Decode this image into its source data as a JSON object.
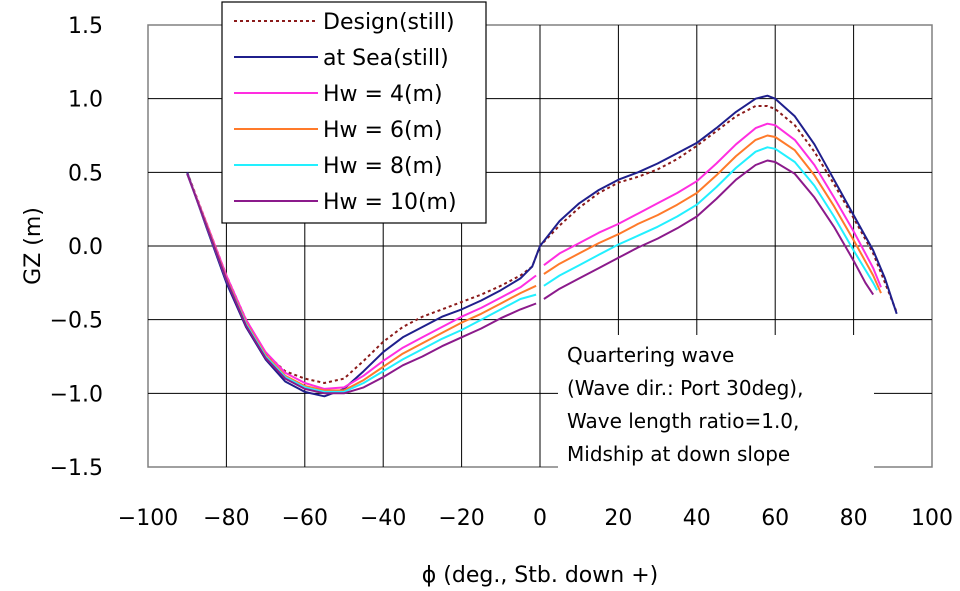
{
  "chart_data": {
    "type": "line",
    "xlabel": "ϕ (deg., Stb. down +)",
    "ylabel": "GZ (m)",
    "xlim": [
      -100,
      100
    ],
    "ylim": [
      -1.5,
      1.5
    ],
    "xticks": [
      -100,
      -80,
      -60,
      -40,
      -20,
      0,
      20,
      40,
      60,
      80,
      100
    ],
    "yticks": [
      1.5,
      1.0,
      0.5,
      0.0,
      -0.5,
      -1.0,
      -1.5
    ],
    "xtick_labels": [
      "−100",
      "−80",
      "−60",
      "−40",
      "−20",
      "0",
      "20",
      "40",
      "60",
      "80",
      "100"
    ],
    "ytick_labels": [
      "1.5",
      "1.0",
      "0.5",
      "0.0",
      "−0.5",
      "−1.0",
      "−1.5"
    ],
    "grid": true,
    "legend_position": "top-left",
    "annotation": [
      "Quartering wave",
      "(Wave dir.: Port 30deg),",
      "Wave length ratio=1.0,",
      "Midship at down slope"
    ],
    "series": [
      {
        "name": "Design(still)",
        "color": "#8b1a1a",
        "dashed": true,
        "segments": [
          [
            [
              -90,
              0.5
            ],
            [
              -85,
              0.15
            ],
            [
              -80,
              -0.2
            ],
            [
              -75,
              -0.5
            ],
            [
              -70,
              -0.73
            ],
            [
              -65,
              -0.85
            ],
            [
              -60,
              -0.9
            ],
            [
              -55,
              -0.93
            ],
            [
              -50,
              -0.9
            ],
            [
              -45,
              -0.78
            ],
            [
              -40,
              -0.65
            ],
            [
              -35,
              -0.55
            ],
            [
              -30,
              -0.48
            ],
            [
              -25,
              -0.43
            ],
            [
              -20,
              -0.38
            ],
            [
              -15,
              -0.33
            ],
            [
              -10,
              -0.27
            ],
            [
              -5,
              -0.2
            ],
            [
              -2,
              -0.14
            ],
            [
              0,
              0.0
            ],
            [
              5,
              0.14
            ],
            [
              10,
              0.26
            ],
            [
              15,
              0.36
            ],
            [
              20,
              0.43
            ],
            [
              25,
              0.47
            ],
            [
              30,
              0.52
            ],
            [
              35,
              0.59
            ],
            [
              40,
              0.68
            ],
            [
              45,
              0.78
            ],
            [
              50,
              0.88
            ],
            [
              55,
              0.95
            ],
            [
              58,
              0.95
            ],
            [
              60,
              0.93
            ],
            [
              65,
              0.82
            ],
            [
              70,
              0.64
            ],
            [
              75,
              0.42
            ],
            [
              80,
              0.19
            ],
            [
              85,
              -0.05
            ],
            [
              88,
              -0.25
            ],
            [
              91,
              -0.45
            ]
          ]
        ]
      },
      {
        "name": "at Sea(still)",
        "color": "#1f1f8c",
        "dashed": false,
        "segments": [
          [
            [
              -90,
              0.5
            ],
            [
              -85,
              0.12
            ],
            [
              -80,
              -0.25
            ],
            [
              -75,
              -0.55
            ],
            [
              -70,
              -0.77
            ],
            [
              -65,
              -0.92
            ],
            [
              -60,
              -0.99
            ],
            [
              -55,
              -1.02
            ],
            [
              -50,
              -0.97
            ],
            [
              -45,
              -0.85
            ],
            [
              -40,
              -0.72
            ],
            [
              -35,
              -0.62
            ],
            [
              -30,
              -0.55
            ],
            [
              -25,
              -0.48
            ],
            [
              -20,
              -0.43
            ],
            [
              -15,
              -0.37
            ],
            [
              -10,
              -0.3
            ],
            [
              -5,
              -0.22
            ],
            [
              -2,
              -0.14
            ],
            [
              0,
              0.0
            ],
            [
              5,
              0.17
            ],
            [
              10,
              0.29
            ],
            [
              15,
              0.38
            ],
            [
              20,
              0.45
            ],
            [
              25,
              0.5
            ],
            [
              30,
              0.56
            ],
            [
              35,
              0.63
            ],
            [
              40,
              0.7
            ],
            [
              45,
              0.8
            ],
            [
              50,
              0.91
            ],
            [
              55,
              1.0
            ],
            [
              58,
              1.02
            ],
            [
              60,
              1.0
            ],
            [
              65,
              0.88
            ],
            [
              70,
              0.69
            ],
            [
              75,
              0.45
            ],
            [
              80,
              0.21
            ],
            [
              85,
              -0.03
            ],
            [
              88,
              -0.22
            ],
            [
              91,
              -0.46
            ]
          ]
        ]
      },
      {
        "name": "Hw = 4(m)",
        "color": "#ff2ee0",
        "dashed": false,
        "segments": [
          [
            [
              -90,
              0.49
            ],
            [
              -85,
              0.15
            ],
            [
              -80,
              -0.2
            ],
            [
              -75,
              -0.5
            ],
            [
              -70,
              -0.72
            ],
            [
              -65,
              -0.86
            ],
            [
              -60,
              -0.93
            ],
            [
              -55,
              -0.97
            ],
            [
              -50,
              -0.96
            ],
            [
              -45,
              -0.88
            ],
            [
              -40,
              -0.78
            ],
            [
              -35,
              -0.69
            ],
            [
              -30,
              -0.62
            ],
            [
              -25,
              -0.55
            ],
            [
              -20,
              -0.48
            ],
            [
              -15,
              -0.42
            ],
            [
              -10,
              -0.35
            ],
            [
              -5,
              -0.28
            ],
            [
              -1,
              -0.2
            ]
          ],
          [
            [
              1,
              -0.13
            ],
            [
              5,
              -0.05
            ],
            [
              10,
              0.02
            ],
            [
              15,
              0.09
            ],
            [
              20,
              0.15
            ],
            [
              25,
              0.22
            ],
            [
              30,
              0.29
            ],
            [
              35,
              0.36
            ],
            [
              40,
              0.44
            ],
            [
              45,
              0.56
            ],
            [
              50,
              0.69
            ],
            [
              55,
              0.8
            ],
            [
              58,
              0.83
            ],
            [
              60,
              0.82
            ],
            [
              65,
              0.72
            ],
            [
              70,
              0.55
            ],
            [
              75,
              0.33
            ],
            [
              80,
              0.1
            ],
            [
              85,
              -0.15
            ],
            [
              87,
              -0.28
            ]
          ]
        ]
      },
      {
        "name": "Hw = 6(m)",
        "color": "#ff7a2a",
        "dashed": false,
        "segments": [
          [
            [
              -90,
              0.49
            ],
            [
              -85,
              0.14
            ],
            [
              -80,
              -0.22
            ],
            [
              -75,
              -0.52
            ],
            [
              -70,
              -0.74
            ],
            [
              -65,
              -0.88
            ],
            [
              -60,
              -0.95
            ],
            [
              -55,
              -0.98
            ],
            [
              -50,
              -0.98
            ],
            [
              -45,
              -0.91
            ],
            [
              -40,
              -0.82
            ],
            [
              -35,
              -0.73
            ],
            [
              -30,
              -0.66
            ],
            [
              -25,
              -0.59
            ],
            [
              -20,
              -0.52
            ],
            [
              -15,
              -0.46
            ],
            [
              -10,
              -0.39
            ],
            [
              -5,
              -0.32
            ],
            [
              -1,
              -0.27
            ]
          ],
          [
            [
              1,
              -0.19
            ],
            [
              5,
              -0.12
            ],
            [
              10,
              -0.05
            ],
            [
              15,
              0.02
            ],
            [
              20,
              0.08
            ],
            [
              25,
              0.15
            ],
            [
              30,
              0.21
            ],
            [
              35,
              0.28
            ],
            [
              40,
              0.36
            ],
            [
              45,
              0.48
            ],
            [
              50,
              0.61
            ],
            [
              55,
              0.72
            ],
            [
              58,
              0.75
            ],
            [
              60,
              0.74
            ],
            [
              65,
              0.65
            ],
            [
              70,
              0.48
            ],
            [
              75,
              0.27
            ],
            [
              80,
              0.04
            ],
            [
              85,
              -0.2
            ],
            [
              87,
              -0.32
            ]
          ]
        ]
      },
      {
        "name": "Hw = 8(m)",
        "color": "#22f0ff",
        "dashed": false,
        "segments": [
          [
            [
              -90,
              0.49
            ],
            [
              -85,
              0.13
            ],
            [
              -80,
              -0.23
            ],
            [
              -75,
              -0.53
            ],
            [
              -70,
              -0.75
            ],
            [
              -65,
              -0.89
            ],
            [
              -60,
              -0.96
            ],
            [
              -55,
              -0.99
            ],
            [
              -50,
              -0.99
            ],
            [
              -45,
              -0.93
            ],
            [
              -40,
              -0.85
            ],
            [
              -35,
              -0.77
            ],
            [
              -30,
              -0.7
            ],
            [
              -25,
              -0.63
            ],
            [
              -20,
              -0.57
            ],
            [
              -15,
              -0.5
            ],
            [
              -10,
              -0.43
            ],
            [
              -5,
              -0.36
            ],
            [
              -1,
              -0.33
            ]
          ],
          [
            [
              1,
              -0.27
            ],
            [
              5,
              -0.2
            ],
            [
              10,
              -0.13
            ],
            [
              15,
              -0.06
            ],
            [
              20,
              0.01
            ],
            [
              25,
              0.07
            ],
            [
              30,
              0.13
            ],
            [
              35,
              0.2
            ],
            [
              40,
              0.28
            ],
            [
              45,
              0.4
            ],
            [
              50,
              0.53
            ],
            [
              55,
              0.64
            ],
            [
              58,
              0.67
            ],
            [
              60,
              0.66
            ],
            [
              65,
              0.57
            ],
            [
              70,
              0.41
            ],
            [
              75,
              0.2
            ],
            [
              80,
              -0.03
            ],
            [
              85,
              -0.25
            ],
            [
              86,
              -0.3
            ]
          ]
        ]
      },
      {
        "name": "Hw = 10(m)",
        "color": "#8b1a8b",
        "dashed": false,
        "segments": [
          [
            [
              -90,
              0.49
            ],
            [
              -85,
              0.13
            ],
            [
              -80,
              -0.23
            ],
            [
              -75,
              -0.54
            ],
            [
              -70,
              -0.76
            ],
            [
              -65,
              -0.9
            ],
            [
              -60,
              -0.97
            ],
            [
              -55,
              -1.0
            ],
            [
              -50,
              -1.0
            ],
            [
              -45,
              -0.96
            ],
            [
              -40,
              -0.89
            ],
            [
              -35,
              -0.81
            ],
            [
              -30,
              -0.75
            ],
            [
              -25,
              -0.68
            ],
            [
              -20,
              -0.62
            ],
            [
              -15,
              -0.56
            ],
            [
              -10,
              -0.49
            ],
            [
              -5,
              -0.43
            ],
            [
              -1,
              -0.39
            ]
          ],
          [
            [
              1,
              -0.36
            ],
            [
              5,
              -0.29
            ],
            [
              10,
              -0.22
            ],
            [
              15,
              -0.15
            ],
            [
              20,
              -0.08
            ],
            [
              25,
              -0.01
            ],
            [
              30,
              0.05
            ],
            [
              35,
              0.12
            ],
            [
              40,
              0.2
            ],
            [
              45,
              0.32
            ],
            [
              50,
              0.45
            ],
            [
              55,
              0.55
            ],
            [
              58,
              0.58
            ],
            [
              60,
              0.57
            ],
            [
              65,
              0.49
            ],
            [
              70,
              0.33
            ],
            [
              75,
              0.13
            ],
            [
              80,
              -0.1
            ],
            [
              83,
              -0.25
            ],
            [
              85,
              -0.33
            ]
          ]
        ]
      }
    ]
  }
}
